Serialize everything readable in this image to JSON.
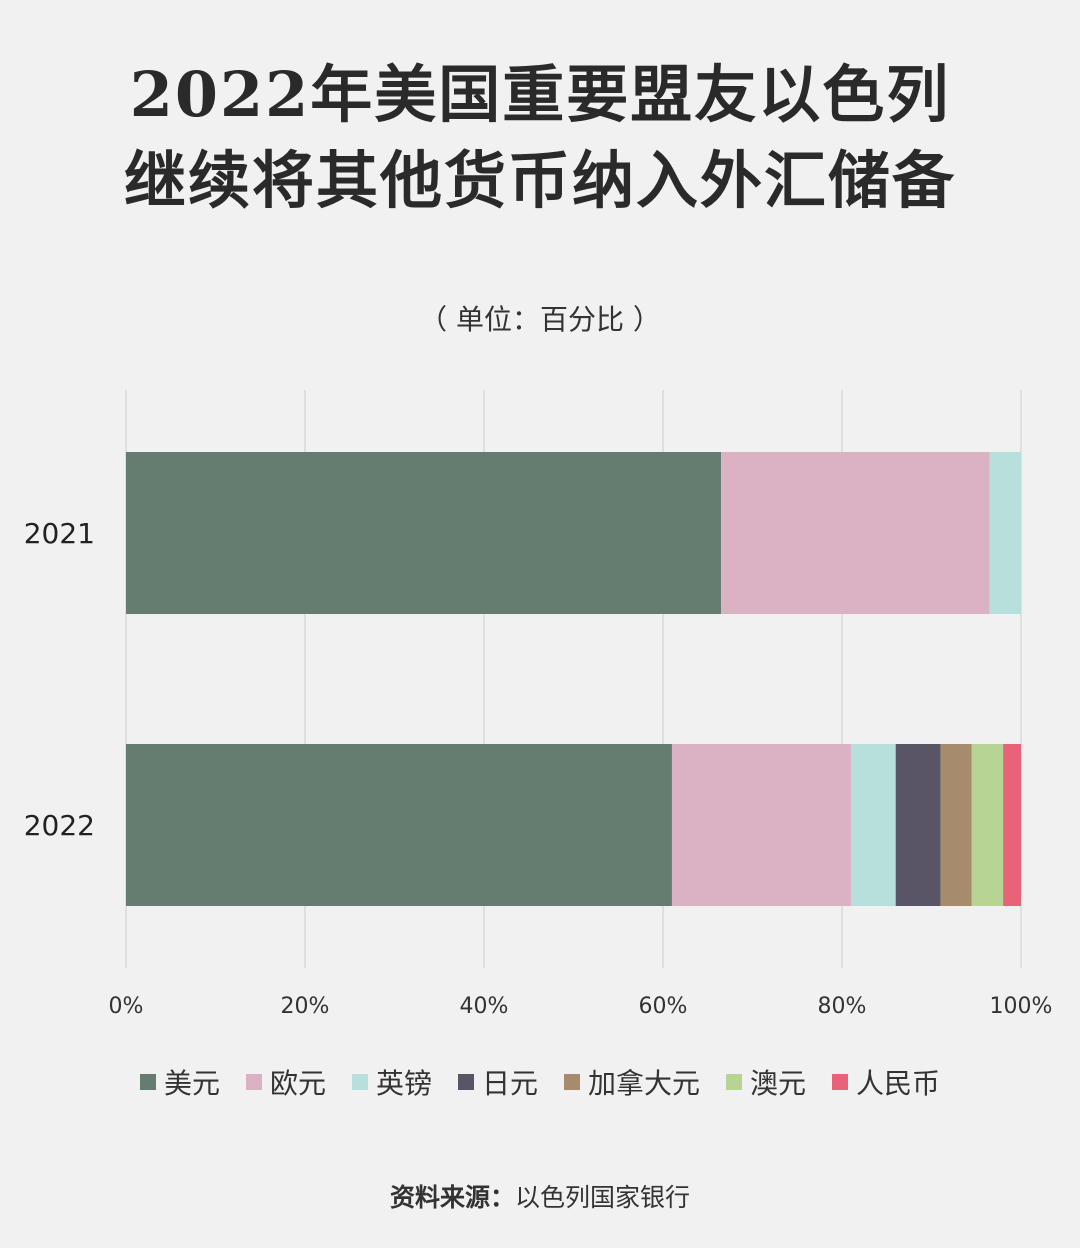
{
  "chart_data": {
    "type": "bar",
    "orientation": "horizontal",
    "stacked": true,
    "title_lines": [
      "2022年美国重要盟友以色列",
      "继续将其他货币纳入外汇储备"
    ],
    "subtitle": "（ 单位：百分比 ）",
    "categories": [
      "2021",
      "2022"
    ],
    "series": [
      {
        "name": "美元",
        "color": "#657c70",
        "values": [
          66.5,
          61.0
        ]
      },
      {
        "name": "欧元",
        "color": "#dbb2c4",
        "values": [
          30.0,
          20.0
        ]
      },
      {
        "name": "英镑",
        "color": "#b7e0dc",
        "values": [
          3.5,
          5.0
        ]
      },
      {
        "name": "日元",
        "color": "#5a5566",
        "values": [
          0,
          5.0
        ]
      },
      {
        "name": "加拿大元",
        "color": "#a68b6c",
        "values": [
          0,
          3.5
        ]
      },
      {
        "name": "澳元",
        "color": "#b8d494",
        "values": [
          0,
          3.5
        ]
      },
      {
        "name": "人民币",
        "color": "#e8637a",
        "values": [
          0,
          2.0
        ]
      }
    ],
    "xlim": [
      0,
      100
    ],
    "xticks": [
      "0%",
      "20%",
      "40%",
      "60%",
      "80%",
      "100%"
    ],
    "grid": true,
    "legend_position": "bottom",
    "source_label": "资料来源：",
    "source_text": "以色列国家银行"
  }
}
